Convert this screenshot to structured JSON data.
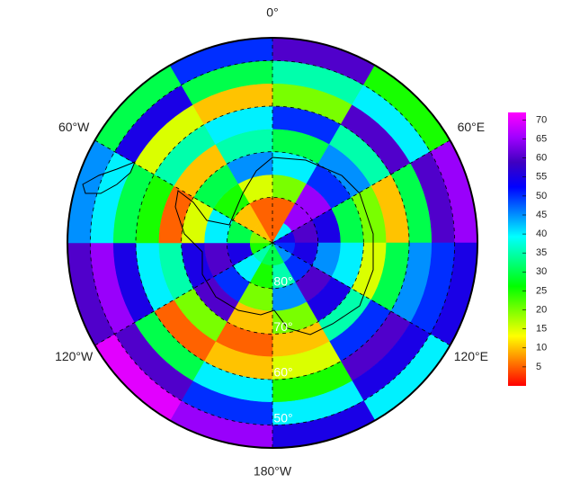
{
  "map": {
    "type": "polar-heatmap",
    "lat_edges": [
      -90,
      -85,
      -80,
      -75,
      -70,
      -65,
      -60,
      -55,
      -50,
      -45
    ],
    "lon_edges": [
      0,
      30,
      60,
      90,
      120,
      150,
      180,
      210,
      240,
      270,
      300,
      330,
      360
    ],
    "values": [
      [
        5,
        40,
        55,
        50,
        45,
        30,
        30,
        35,
        25,
        20,
        10,
        5
      ],
      [
        5,
        65,
        60,
        55,
        50,
        35,
        25,
        40,
        55,
        30,
        10,
        5
      ],
      [
        20,
        65,
        55,
        45,
        60,
        45,
        20,
        50,
        60,
        40,
        25,
        15
      ],
      [
        40,
        50,
        30,
        40,
        55,
        20,
        10,
        60,
        55,
        15,
        30,
        45
      ],
      [
        30,
        45,
        20,
        15,
        35,
        10,
        5,
        20,
        35,
        5,
        10,
        35
      ],
      [
        50,
        35,
        10,
        30,
        50,
        15,
        10,
        5,
        40,
        25,
        35,
        40
      ],
      [
        20,
        60,
        30,
        45,
        60,
        25,
        40,
        30,
        55,
        30,
        15,
        10
      ],
      [
        35,
        40,
        60,
        50,
        55,
        40,
        50,
        60,
        65,
        40,
        55,
        30
      ],
      [
        60,
        25,
        65,
        55,
        40,
        55,
        65,
        70,
        60,
        45,
        30,
        50
      ]
    ],
    "lon_labels": [
      {
        "value": 0,
        "label": "0°"
      },
      {
        "value": 60,
        "label": "60°E"
      },
      {
        "value": 120,
        "label": "120°E"
      },
      {
        "value": 180,
        "label": "180°W"
      },
      {
        "value": 240,
        "label": "120°W"
      },
      {
        "value": 300,
        "label": "60°W"
      }
    ],
    "lat_labels": [
      {
        "value": -80,
        "label": "80°"
      },
      {
        "value": -70,
        "label": "70°"
      },
      {
        "value": -60,
        "label": "60°"
      },
      {
        "value": -50,
        "label": "50°"
      }
    ],
    "colorbar": {
      "lim": [
        0,
        72
      ],
      "ticks": [
        5,
        10,
        15,
        20,
        25,
        30,
        35,
        40,
        45,
        50,
        55,
        60,
        65,
        70
      ],
      "colormap": [
        "#ff0000",
        "#ff8000",
        "#ffff00",
        "#80ff00",
        "#00ff00",
        "#00ff80",
        "#00ffff",
        "#0080ff",
        "#0000ff",
        "#4000c0",
        "#a000ff",
        "#ff00ff"
      ]
    }
  }
}
